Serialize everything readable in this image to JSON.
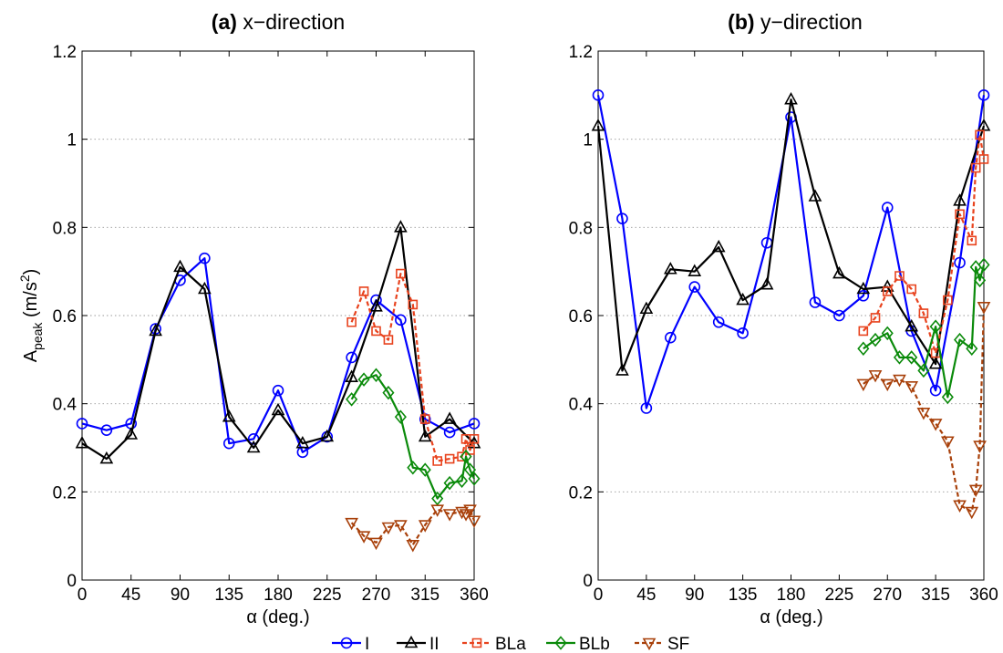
{
  "chart_data": [
    {
      "type": "line",
      "title_prefix": "(a)",
      "title_text": "x−direction",
      "xlabel": "α (deg.)",
      "ylabel_main": "A",
      "ylabel_sub": "peak",
      "ylabel_unit_pre": " (m/s",
      "ylabel_unit_sup": "2",
      "ylabel_unit_post": ")",
      "xlim": [
        0,
        360
      ],
      "ylim": [
        0,
        1.2
      ],
      "xticks": [
        0,
        45,
        90,
        135,
        180,
        225,
        270,
        315,
        360
      ],
      "xtick_labels": [
        "0",
        "45",
        "90",
        "135",
        "180",
        "225",
        "270",
        "315",
        "360"
      ],
      "yticks": [
        0,
        0.2,
        0.4,
        0.6,
        0.8,
        1,
        1.2
      ],
      "ytick_labels": [
        "0",
        "0.2",
        "0.4",
        "0.6",
        "0.8",
        "1",
        "1.2"
      ],
      "grid": "horizontal dotted",
      "series": [
        {
          "name": "I",
          "color": "#0000ff",
          "marker": "circle",
          "dash": "solid",
          "x": [
            0,
            22.5,
            45,
            67.5,
            90,
            112.5,
            135,
            157.5,
            180,
            202.5,
            225,
            247.5,
            270,
            292.5,
            315,
            337.5,
            360
          ],
          "y": [
            0.355,
            0.34,
            0.355,
            0.57,
            0.68,
            0.73,
            0.31,
            0.32,
            0.43,
            0.29,
            0.325,
            0.505,
            0.635,
            0.59,
            0.365,
            0.335,
            0.355
          ]
        },
        {
          "name": "II",
          "color": "#000000",
          "marker": "triangle-up",
          "dash": "solid",
          "x": [
            0,
            22.5,
            45,
            67.5,
            90,
            112.5,
            135,
            157.5,
            180,
            202.5,
            225,
            247.5,
            270,
            292.5,
            315,
            337.5,
            360
          ],
          "y": [
            0.31,
            0.275,
            0.33,
            0.565,
            0.71,
            0.66,
            0.37,
            0.3,
            0.385,
            0.31,
            0.325,
            0.46,
            0.62,
            0.8,
            0.325,
            0.365,
            0.31
          ]
        },
        {
          "name": "BLa",
          "color": "#e8431e",
          "marker": "square",
          "dash": "dashed",
          "x": [
            247.5,
            258.75,
            270,
            281.25,
            292.5,
            303.75,
            315,
            326.25,
            337.5,
            348.75,
            352.5,
            356.25,
            360
          ],
          "y": [
            0.585,
            0.655,
            0.565,
            0.545,
            0.695,
            0.625,
            0.365,
            0.27,
            0.275,
            0.28,
            0.32,
            0.295,
            0.32
          ]
        },
        {
          "name": "BLb",
          "color": "#0a8a0a",
          "marker": "diamond",
          "dash": "solid",
          "x": [
            247.5,
            258.75,
            270,
            281.25,
            292.5,
            303.75,
            315,
            326.25,
            337.5,
            348.75,
            352.5,
            356.25,
            360
          ],
          "y": [
            0.41,
            0.455,
            0.465,
            0.425,
            0.37,
            0.255,
            0.25,
            0.185,
            0.22,
            0.225,
            0.28,
            0.25,
            0.23
          ]
        },
        {
          "name": "SF",
          "color": "#a8400a",
          "marker": "triangle-down",
          "dash": "dashed",
          "x": [
            247.5,
            258.75,
            270,
            281.25,
            292.5,
            303.75,
            315,
            326.25,
            337.5,
            348.75,
            352.5,
            356.25,
            360
          ],
          "y": [
            0.13,
            0.1,
            0.085,
            0.12,
            0.125,
            0.08,
            0.125,
            0.16,
            0.15,
            0.155,
            0.15,
            0.16,
            0.135
          ]
        }
      ]
    },
    {
      "type": "line",
      "title_prefix": "(b)",
      "title_text": "y−direction",
      "xlabel": "α (deg.)",
      "xlim": [
        0,
        360
      ],
      "ylim": [
        0,
        1.2
      ],
      "xticks": [
        0,
        45,
        90,
        135,
        180,
        225,
        270,
        315,
        360
      ],
      "xtick_labels": [
        "0",
        "45",
        "90",
        "135",
        "180",
        "225",
        "270",
        "315",
        "360"
      ],
      "yticks": [
        0,
        0.2,
        0.4,
        0.6,
        0.8,
        1,
        1.2
      ],
      "ytick_labels": [
        "0",
        "0.2",
        "0.4",
        "0.6",
        "0.8",
        "1",
        "1.2"
      ],
      "grid": "horizontal dotted",
      "series": [
        {
          "name": "I",
          "color": "#0000ff",
          "marker": "circle",
          "dash": "solid",
          "x": [
            0,
            22.5,
            45,
            67.5,
            90,
            112.5,
            135,
            157.5,
            180,
            202.5,
            225,
            247.5,
            270,
            292.5,
            315,
            337.5,
            360
          ],
          "y": [
            1.1,
            0.82,
            0.39,
            0.55,
            0.665,
            0.585,
            0.56,
            0.765,
            1.05,
            0.63,
            0.6,
            0.645,
            0.845,
            0.565,
            0.43,
            0.72,
            1.1
          ]
        },
        {
          "name": "II",
          "color": "#000000",
          "marker": "triangle-up",
          "dash": "solid",
          "x": [
            0,
            22.5,
            45,
            67.5,
            90,
            112.5,
            135,
            157.5,
            180,
            202.5,
            225,
            247.5,
            270,
            292.5,
            315,
            337.5,
            360
          ],
          "y": [
            1.03,
            0.475,
            0.615,
            0.705,
            0.7,
            0.755,
            0.635,
            0.67,
            1.09,
            0.87,
            0.695,
            0.66,
            0.665,
            0.575,
            0.49,
            0.86,
            1.03
          ]
        },
        {
          "name": "BLa",
          "color": "#e8431e",
          "marker": "square",
          "dash": "dashed",
          "x": [
            247.5,
            258.75,
            270,
            281.25,
            292.5,
            303.75,
            315,
            326.25,
            337.5,
            348.75,
            352.5,
            356.25,
            360
          ],
          "y": [
            0.565,
            0.595,
            0.655,
            0.69,
            0.66,
            0.605,
            0.515,
            0.635,
            0.83,
            0.77,
            0.935,
            1.01,
            0.955
          ]
        },
        {
          "name": "BLb",
          "color": "#0a8a0a",
          "marker": "diamond",
          "dash": "solid",
          "x": [
            247.5,
            258.75,
            270,
            281.25,
            292.5,
            303.75,
            315,
            326.25,
            337.5,
            348.75,
            352.5,
            356.25,
            360
          ],
          "y": [
            0.525,
            0.545,
            0.56,
            0.505,
            0.505,
            0.475,
            0.575,
            0.415,
            0.545,
            0.525,
            0.71,
            0.68,
            0.715
          ]
        },
        {
          "name": "SF",
          "color": "#a8400a",
          "marker": "triangle-down",
          "dash": "dashed",
          "x": [
            247.5,
            258.75,
            270,
            281.25,
            292.5,
            303.75,
            315,
            326.25,
            337.5,
            348.75,
            352.5,
            356.25,
            360
          ],
          "y": [
            0.445,
            0.465,
            0.445,
            0.455,
            0.44,
            0.38,
            0.355,
            0.315,
            0.17,
            0.155,
            0.205,
            0.305,
            0.62
          ]
        }
      ]
    }
  ],
  "legend": {
    "placement": "bottom-center",
    "items": [
      {
        "label": "I",
        "color": "#0000ff",
        "marker": "circle",
        "dash": "solid"
      },
      {
        "label": "II",
        "color": "#000000",
        "marker": "triangle-up",
        "dash": "solid"
      },
      {
        "label": "BLa",
        "color": "#e8431e",
        "marker": "square",
        "dash": "dashed"
      },
      {
        "label": "BLb",
        "color": "#0a8a0a",
        "marker": "diamond",
        "dash": "solid"
      },
      {
        "label": "SF",
        "color": "#a8400a",
        "marker": "triangle-down",
        "dash": "dashed"
      }
    ]
  }
}
